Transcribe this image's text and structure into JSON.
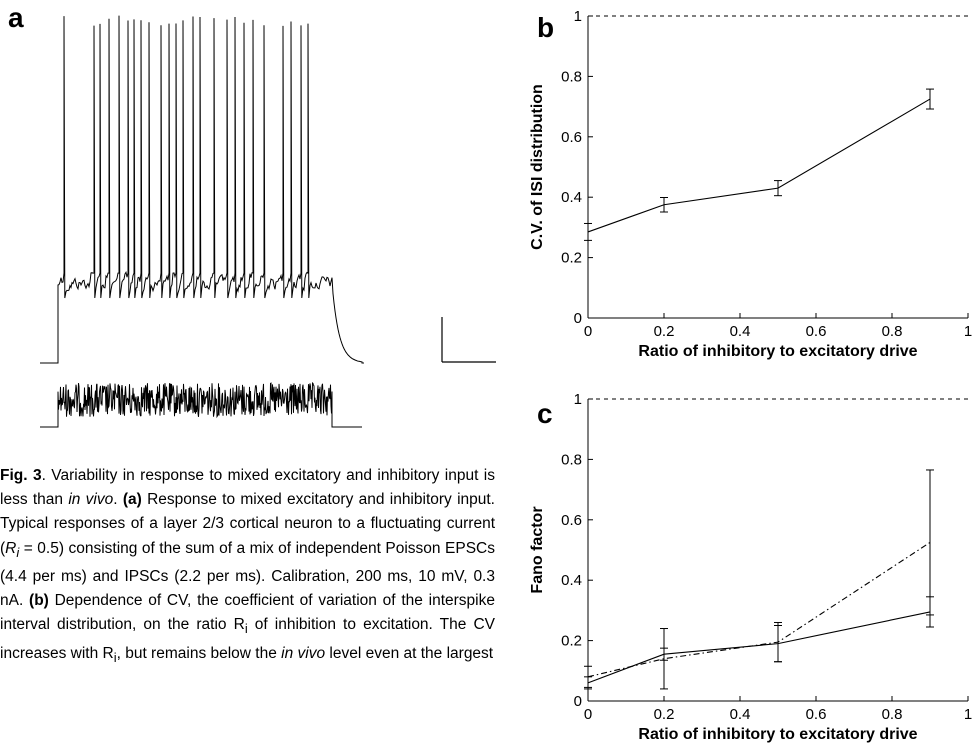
{
  "panel_a": {
    "letter": "a"
  },
  "caption": {
    "fig_label": "Fig. 3",
    "sentence": ". Variability in response to mixed excitatory and inhibitory input is less than ",
    "in_vivo": "in vivo",
    "part_a_label": "(a)",
    "part_a_text_1": " Response to mixed excitatory and inhibitory input. Typical responses of a layer 2/3 cortical neuron to a fluctuating current (",
    "ri_symbol": "R",
    "ri_sub": "i",
    "part_a_text_2": " = 0.5) consisting of the sum of a mix of independent Poisson EPSCs (4.4 per ms) and IPSCs (2.2 per ms). Calibration, 200 ms, 10 mV, 0.3 nA. ",
    "part_b_label": "(b)",
    "part_b_text_1": " Dependence of CV, the coefficient of variation of the interspike interval distribution, on the ratio R",
    "part_b_text_2": " of inhibition to excitation. The CV increases with R",
    "part_b_text_3": ", but remains below the ",
    "part_b_text_4": " level even at the largest"
  },
  "chart_data": [
    {
      "panel": "b",
      "type": "line",
      "xlabel": "Ratio of inhibitory to excitatory drive",
      "ylabel": "C.V. of ISI distribution",
      "xlim": [
        0,
        1
      ],
      "ylim": [
        0,
        1
      ],
      "xticks": [
        0,
        0.2,
        0.4,
        0.6,
        0.8,
        1
      ],
      "xtick_labels": [
        "0",
        "0.2",
        "0.4",
        "0.6",
        "0.8",
        "1"
      ],
      "yticks": [
        0,
        0.2,
        0.4,
        0.6,
        0.8,
        1
      ],
      "ytick_labels": [
        "0",
        "0.2",
        "0.4",
        "0.6",
        "0.8",
        "1"
      ],
      "reference_line": {
        "y": 1,
        "style": "dashed"
      },
      "series": [
        {
          "style": "solid",
          "x": [
            0,
            0.2,
            0.5,
            0.9
          ],
          "y": [
            0.285,
            0.375,
            0.43,
            0.725
          ],
          "err": [
            0.028,
            0.024,
            0.025,
            0.033
          ]
        }
      ]
    },
    {
      "panel": "c",
      "type": "line",
      "xlabel": "Ratio of inhibitory to excitatory drive",
      "ylabel": "Fano factor",
      "xlim": [
        0,
        1
      ],
      "ylim": [
        0,
        1
      ],
      "xticks": [
        0,
        0.2,
        0.4,
        0.6,
        0.8,
        1
      ],
      "xtick_labels": [
        "0",
        "0.2",
        "0.4",
        "0.6",
        "0.8",
        "1"
      ],
      "yticks": [
        0,
        0.2,
        0.4,
        0.6,
        0.8,
        1
      ],
      "ytick_labels": [
        "0",
        "0.2",
        "0.4",
        "0.6",
        "0.8",
        "1"
      ],
      "reference_line": {
        "y": 1,
        "style": "dashed"
      },
      "series": [
        {
          "style": "solid",
          "x": [
            0,
            0.2,
            0.5,
            0.9
          ],
          "y": [
            0.06,
            0.155,
            0.19,
            0.295
          ],
          "err": [
            0.02,
            0.02,
            0.06,
            0.05
          ]
        },
        {
          "style": "dashdot",
          "x": [
            0,
            0.2,
            0.5,
            0.9
          ],
          "y": [
            0.08,
            0.14,
            0.195,
            0.525
          ],
          "err": [
            0.035,
            0.1,
            0.065,
            0.24
          ]
        }
      ]
    }
  ]
}
